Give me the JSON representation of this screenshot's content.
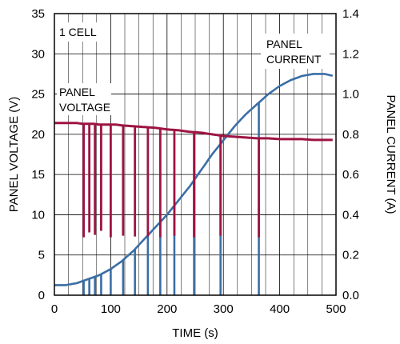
{
  "chart_data": {
    "type": "line",
    "title": "",
    "xlabel": "TIME (s)",
    "ylabel_left": "PANEL VOLTAGE (V)",
    "ylabel_right": "PANEL CURRENT (A)",
    "xlim": [
      0,
      500
    ],
    "ylim_left": [
      0,
      35
    ],
    "ylim_right": [
      0,
      1.4
    ],
    "x_ticks": [
      "0",
      "100",
      "200",
      "300",
      "400",
      "500"
    ],
    "y_left_ticks": [
      "0",
      "5",
      "10",
      "15",
      "20",
      "25",
      "30",
      "35"
    ],
    "y_right_ticks": [
      "0.0",
      "0.2",
      "0.4",
      "0.6",
      "0.8",
      "1.0",
      "1.2",
      "1.4"
    ],
    "grid": true,
    "annotations": {
      "cell": "1 CELL",
      "voltage_line1": "PANEL",
      "voltage_line2": "VOLTAGE",
      "current_line1": "PANEL",
      "current_line2": "CURRENT"
    },
    "series": [
      {
        "color": "#9e1443",
        "axis": "left",
        "x": [
          0,
          40,
          50,
          60,
          70,
          80,
          90,
          100,
          110,
          120,
          140,
          160,
          180,
          200,
          220,
          240,
          260,
          280,
          300,
          320,
          340,
          360,
          380,
          400,
          420,
          440,
          460,
          480,
          495
        ],
        "y": [
          21.4,
          21.4,
          21.3,
          21.3,
          21.3,
          21.2,
          21.2,
          21.2,
          21.2,
          21.1,
          21.0,
          20.9,
          20.8,
          20.6,
          20.5,
          20.3,
          20.2,
          20.0,
          19.8,
          19.7,
          19.6,
          19.5,
          19.5,
          19.4,
          19.4,
          19.4,
          19.3,
          19.3,
          19.3
        ],
        "dips": [
          {
            "x": 52,
            "y": 7.2
          },
          {
            "x": 62,
            "y": 7.8
          },
          {
            "x": 72,
            "y": 7.5
          },
          {
            "x": 83,
            "y": 8.0
          },
          {
            "x": 100,
            "y": 7.2
          },
          {
            "x": 122,
            "y": 7.4
          },
          {
            "x": 143,
            "y": 7.3
          },
          {
            "x": 166,
            "y": 7.3
          },
          {
            "x": 188,
            "y": 7.2
          },
          {
            "x": 213,
            "y": 7.4
          },
          {
            "x": 248,
            "y": 7.2
          },
          {
            "x": 295,
            "y": 7.4
          },
          {
            "x": 363,
            "y": 7.2
          }
        ]
      },
      {
        "color": "#3a6ea5",
        "axis": "right",
        "x": [
          0,
          20,
          40,
          60,
          80,
          100,
          120,
          140,
          160,
          180,
          200,
          220,
          240,
          260,
          280,
          300,
          320,
          340,
          360,
          380,
          400,
          420,
          440,
          460,
          480,
          495
        ],
        "y": [
          0.05,
          0.05,
          0.06,
          0.08,
          0.1,
          0.13,
          0.17,
          0.22,
          0.28,
          0.34,
          0.4,
          0.47,
          0.54,
          0.62,
          0.7,
          0.77,
          0.84,
          0.9,
          0.95,
          1.0,
          1.04,
          1.07,
          1.09,
          1.1,
          1.1,
          1.09
        ],
        "spikes_to_zero": [
          52,
          62,
          72,
          83,
          100,
          122,
          143,
          166,
          188,
          213,
          248,
          295,
          363
        ]
      }
    ]
  }
}
